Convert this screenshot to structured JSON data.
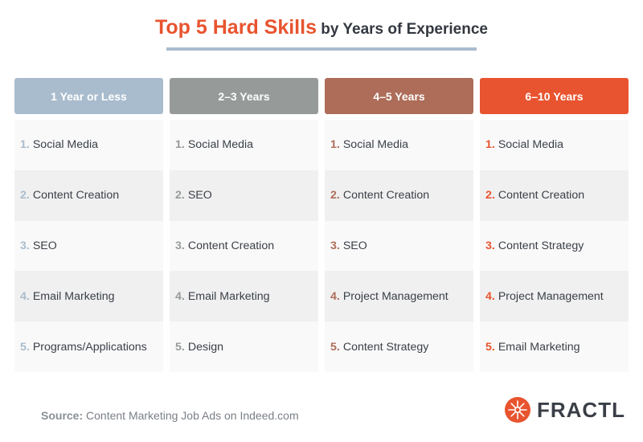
{
  "title": {
    "highlight": "Top 5 Hard Skills",
    "rest": " by Years of Experience"
  },
  "colors": {
    "accent": "#e8542f",
    "rule": "#a9bccd"
  },
  "chart_data": {
    "type": "table",
    "title": "Top 5 Hard Skills by Years of Experience",
    "columns": [
      {
        "header": "1 Year or Less",
        "color": "#a9bccd",
        "number_color": "#a9bccd",
        "items": [
          "Social Media",
          "Content Creation",
          "SEO",
          "Email Marketing",
          "Programs/Applications"
        ]
      },
      {
        "header": "2–3 Years",
        "color": "#969b99",
        "number_color": "#969b99",
        "items": [
          "Social Media",
          "SEO",
          "Content Creation",
          "Email Marketing",
          "Design"
        ]
      },
      {
        "header": "4–5 Years",
        "color": "#ad6d59",
        "number_color": "#ad6d59",
        "items": [
          "Social Media",
          "Content Creation",
          "SEO",
          "Project Management",
          "Content Strategy"
        ]
      },
      {
        "header": "6–10 Years",
        "color": "#e8542f",
        "number_color": "#e8542f",
        "items": [
          "Social Media",
          "Content Creation",
          "Content Strategy",
          "Project Management",
          "Email Marketing"
        ]
      }
    ]
  },
  "source": {
    "label": "Source:",
    "text": " Content Marketing Job Ads on Indeed.com"
  },
  "logo": {
    "text": "FRACTL",
    "icon": "fractl-logo-icon"
  }
}
